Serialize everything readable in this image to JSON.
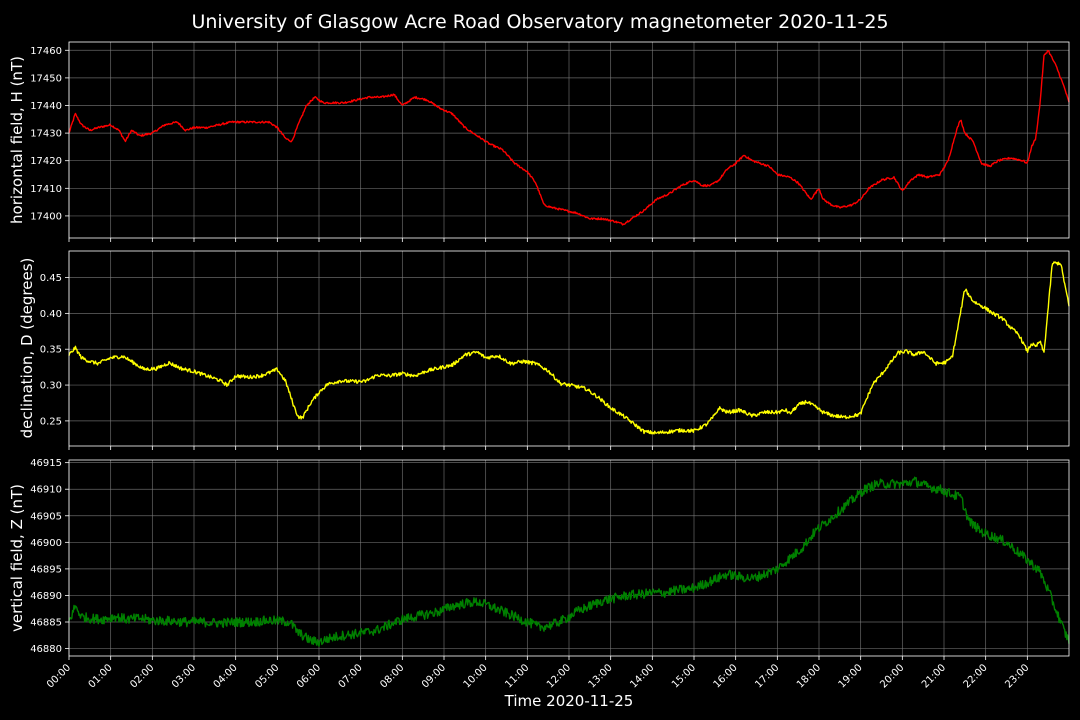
{
  "title": "University of Glasgow Acre Road Observatory magnetometer 2020-11-25",
  "xlabel": "Time 2020-11-25",
  "x_tick_labels": [
    "00:00",
    "01:00",
    "02:00",
    "03:00",
    "04:00",
    "05:00",
    "06:00",
    "07:00",
    "08:00",
    "09:00",
    "10:00",
    "11:00",
    "12:00",
    "13:00",
    "14:00",
    "15:00",
    "16:00",
    "17:00",
    "18:00",
    "19:00",
    "20:00",
    "21:00",
    "22:00",
    "23:00"
  ],
  "chart_data": [
    {
      "type": "line",
      "ylabel": "horizontal field, H (nT)",
      "color": "#ff0000",
      "xlim": [
        0,
        24
      ],
      "ylim": [
        17392,
        17463
      ],
      "y_ticks": [
        17400,
        17410,
        17420,
        17430,
        17440,
        17450,
        17460
      ],
      "noise": 0.35,
      "series": [
        {
          "x": [
            0,
            0.15,
            0.3,
            0.5,
            0.7,
            1.0,
            1.2,
            1.35,
            1.5,
            1.7,
            2.0,
            2.3,
            2.6,
            2.8,
            3.0,
            3.3,
            3.6,
            3.9,
            4.2,
            4.5,
            4.8,
            5.0,
            5.2,
            5.35,
            5.5,
            5.7,
            5.9,
            6.1,
            6.3,
            6.6,
            6.9,
            7.2,
            7.5,
            7.8,
            8.0,
            8.3,
            8.6,
            8.9,
            9.2,
            9.5,
            9.8,
            10.1,
            10.4,
            10.7,
            11.0,
            11.2,
            11.4,
            11.6,
            11.9,
            12.2,
            12.5,
            12.8,
            13.1,
            13.3,
            13.5,
            13.8,
            14.1,
            14.4,
            14.7,
            15.0,
            15.2,
            15.4,
            15.6,
            15.8,
            16.0,
            16.2,
            16.4,
            16.6,
            16.8,
            17.0,
            17.3,
            17.5,
            17.8,
            17.9,
            18.0,
            18.1,
            18.2,
            18.3,
            18.5,
            18.8,
            19.0,
            19.2,
            19.5,
            19.8,
            20.0,
            20.2,
            20.4,
            20.6,
            20.9,
            21.1,
            21.3,
            21.4,
            21.5,
            21.7,
            21.9,
            22.1,
            22.3,
            22.6,
            22.9,
            23.0,
            23.1,
            23.2,
            23.3,
            23.4,
            23.5,
            23.6,
            23.7,
            23.8,
            23.9,
            24.0
          ],
          "y": [
            17430,
            17437,
            17433,
            17431,
            17432,
            17433,
            17431,
            17427,
            17431,
            17429,
            17430,
            17433,
            17434,
            17431,
            17432,
            17432,
            17433,
            17434,
            17434,
            17434,
            17434,
            17432,
            17428,
            17427,
            17433,
            17440,
            17443,
            17441,
            17441,
            17441,
            17442,
            17443,
            17443,
            17444,
            17440,
            17443,
            17442,
            17439,
            17437,
            17432,
            17429,
            17426,
            17424,
            17419,
            17416,
            17412,
            17404,
            17403,
            17402,
            17401,
            17399,
            17399,
            17398,
            17397,
            17399,
            17402,
            17406,
            17408,
            17411,
            17413,
            17411,
            17411,
            17413,
            17417,
            17419,
            17422,
            17420,
            17419,
            17418,
            17415,
            17414,
            17412,
            17406,
            17408,
            17410,
            17406,
            17405,
            17404,
            17403,
            17404,
            17406,
            17410,
            17413,
            17414,
            17409,
            17413,
            17415,
            17414,
            17415,
            17420,
            17431,
            17435,
            17430,
            17427,
            17419,
            17418,
            17420,
            17421,
            17420,
            17419,
            17425,
            17428,
            17440,
            17458,
            17460,
            17457,
            17454,
            17450,
            17446,
            17441
          ]
        }
      ]
    },
    {
      "type": "line",
      "ylabel": "declination, D (degrees)",
      "color": "#ffff00",
      "xlim": [
        0,
        24
      ],
      "ylim": [
        0.215,
        0.487
      ],
      "y_ticks": [
        0.25,
        0.3,
        0.35,
        0.4,
        0.45
      ],
      "y_tick_labels": [
        "0.25",
        "0.30",
        "0.35",
        "0.40",
        "0.45"
      ],
      "noise": 0.0025,
      "series": [
        {
          "x": [
            0,
            0.15,
            0.3,
            0.5,
            0.7,
            1.0,
            1.3,
            1.5,
            1.8,
            2.1,
            2.4,
            2.7,
            3.0,
            3.3,
            3.6,
            3.8,
            4.0,
            4.3,
            4.6,
            4.8,
            5.0,
            5.2,
            5.4,
            5.5,
            5.6,
            5.8,
            6.0,
            6.2,
            6.5,
            6.8,
            7.1,
            7.4,
            7.7,
            8.0,
            8.3,
            8.6,
            8.9,
            9.2,
            9.5,
            9.8,
            10.0,
            10.3,
            10.6,
            10.9,
            11.2,
            11.5,
            11.8,
            12.1,
            12.4,
            12.7,
            13.0,
            13.3,
            13.6,
            13.8,
            14.1,
            14.4,
            14.7,
            15.0,
            15.3,
            15.5,
            15.6,
            15.8,
            16.1,
            16.4,
            16.7,
            17.0,
            17.2,
            17.3,
            17.5,
            17.7,
            17.9,
            18.1,
            18.3,
            18.6,
            18.9,
            19.0,
            19.1,
            19.3,
            19.5,
            19.7,
            19.9,
            20.1,
            20.3,
            20.5,
            20.8,
            21.0,
            21.1,
            21.2,
            21.3,
            21.5,
            21.7,
            22.0,
            22.2,
            22.4,
            22.6,
            22.8,
            23.0,
            23.1,
            23.2,
            23.3,
            23.4,
            23.6,
            23.8,
            24.0
          ],
          "y": [
            0.342,
            0.352,
            0.338,
            0.333,
            0.33,
            0.338,
            0.34,
            0.333,
            0.322,
            0.323,
            0.331,
            0.323,
            0.319,
            0.313,
            0.307,
            0.3,
            0.313,
            0.311,
            0.313,
            0.317,
            0.322,
            0.305,
            0.27,
            0.256,
            0.254,
            0.275,
            0.29,
            0.301,
            0.306,
            0.305,
            0.305,
            0.314,
            0.313,
            0.316,
            0.313,
            0.32,
            0.324,
            0.328,
            0.342,
            0.346,
            0.338,
            0.341,
            0.33,
            0.333,
            0.33,
            0.32,
            0.302,
            0.299,
            0.295,
            0.283,
            0.268,
            0.257,
            0.244,
            0.235,
            0.233,
            0.235,
            0.237,
            0.236,
            0.245,
            0.258,
            0.268,
            0.262,
            0.265,
            0.257,
            0.262,
            0.262,
            0.265,
            0.26,
            0.272,
            0.277,
            0.27,
            0.262,
            0.258,
            0.255,
            0.258,
            0.26,
            0.275,
            0.302,
            0.315,
            0.33,
            0.345,
            0.347,
            0.342,
            0.347,
            0.33,
            0.331,
            0.334,
            0.34,
            0.37,
            0.434,
            0.417,
            0.407,
            0.399,
            0.393,
            0.38,
            0.37,
            0.347,
            0.358,
            0.353,
            0.361,
            0.345,
            0.47,
            0.47,
            0.41
          ]
        }
      ]
    },
    {
      "type": "line",
      "ylabel": "vertical field, Z (nT)",
      "color": "#008000",
      "xlim": [
        0,
        24
      ],
      "ylim": [
        46878.6,
        46915.5
      ],
      "y_ticks": [
        46880,
        46885,
        46890,
        46895,
        46900,
        46905,
        46910,
        46915
      ],
      "noise": 0.9,
      "series": [
        {
          "x": [
            0,
            0.15,
            0.3,
            0.5,
            0.8,
            1.1,
            1.4,
            1.7,
            2.0,
            2.4,
            2.8,
            3.2,
            3.6,
            4.0,
            4.4,
            4.8,
            5.0,
            5.3,
            5.5,
            5.8,
            6.0,
            6.2,
            6.5,
            6.8,
            7.1,
            7.4,
            7.7,
            8.0,
            8.3,
            8.6,
            8.9,
            9.2,
            9.5,
            9.8,
            10.1,
            10.4,
            10.7,
            11.0,
            11.3,
            11.6,
            11.9,
            12.2,
            12.5,
            12.8,
            13.1,
            13.4,
            13.7,
            14.0,
            14.3,
            14.6,
            14.9,
            15.2,
            15.5,
            15.8,
            16.1,
            16.4,
            16.7,
            17.0,
            17.3,
            17.6,
            17.9,
            18.2,
            18.5,
            18.8,
            19.1,
            19.4,
            19.7,
            20.0,
            20.3,
            20.6,
            20.9,
            21.2,
            21.4,
            21.6,
            21.9,
            22.2,
            22.5,
            22.8,
            23.1,
            23.3,
            23.5,
            23.7,
            23.9,
            24.0
          ],
          "y": [
            46885,
            46888,
            46886,
            46885.7,
            46885.5,
            46886,
            46885.5,
            46885.7,
            46885.3,
            46885.2,
            46885,
            46885,
            46884.8,
            46885,
            46885,
            46885.3,
            46885.2,
            46885,
            46883,
            46881.5,
            46881.2,
            46881.8,
            46882.4,
            46882.7,
            46883,
            46883.5,
            46884.5,
            46885.5,
            46886,
            46886.5,
            46887,
            46888,
            46888.5,
            46888.8,
            46888,
            46887,
            46886,
            46885,
            46884,
            46884.5,
            46885.5,
            46887,
            46888,
            46889,
            46889.5,
            46890,
            46890.2,
            46890.5,
            46890.5,
            46891,
            46891.2,
            46892,
            46893,
            46894,
            46893.5,
            46893.2,
            46894,
            46895,
            46897,
            46899,
            46902,
            46904,
            46906,
            46908,
            46910,
            46911,
            46911,
            46911,
            46911.5,
            46910.5,
            46910,
            46909,
            46908.5,
            46904,
            46902,
            46901,
            46900,
            46898,
            46896,
            46894.5,
            46891,
            46887,
            46883,
            46881.5
          ]
        }
      ]
    }
  ]
}
